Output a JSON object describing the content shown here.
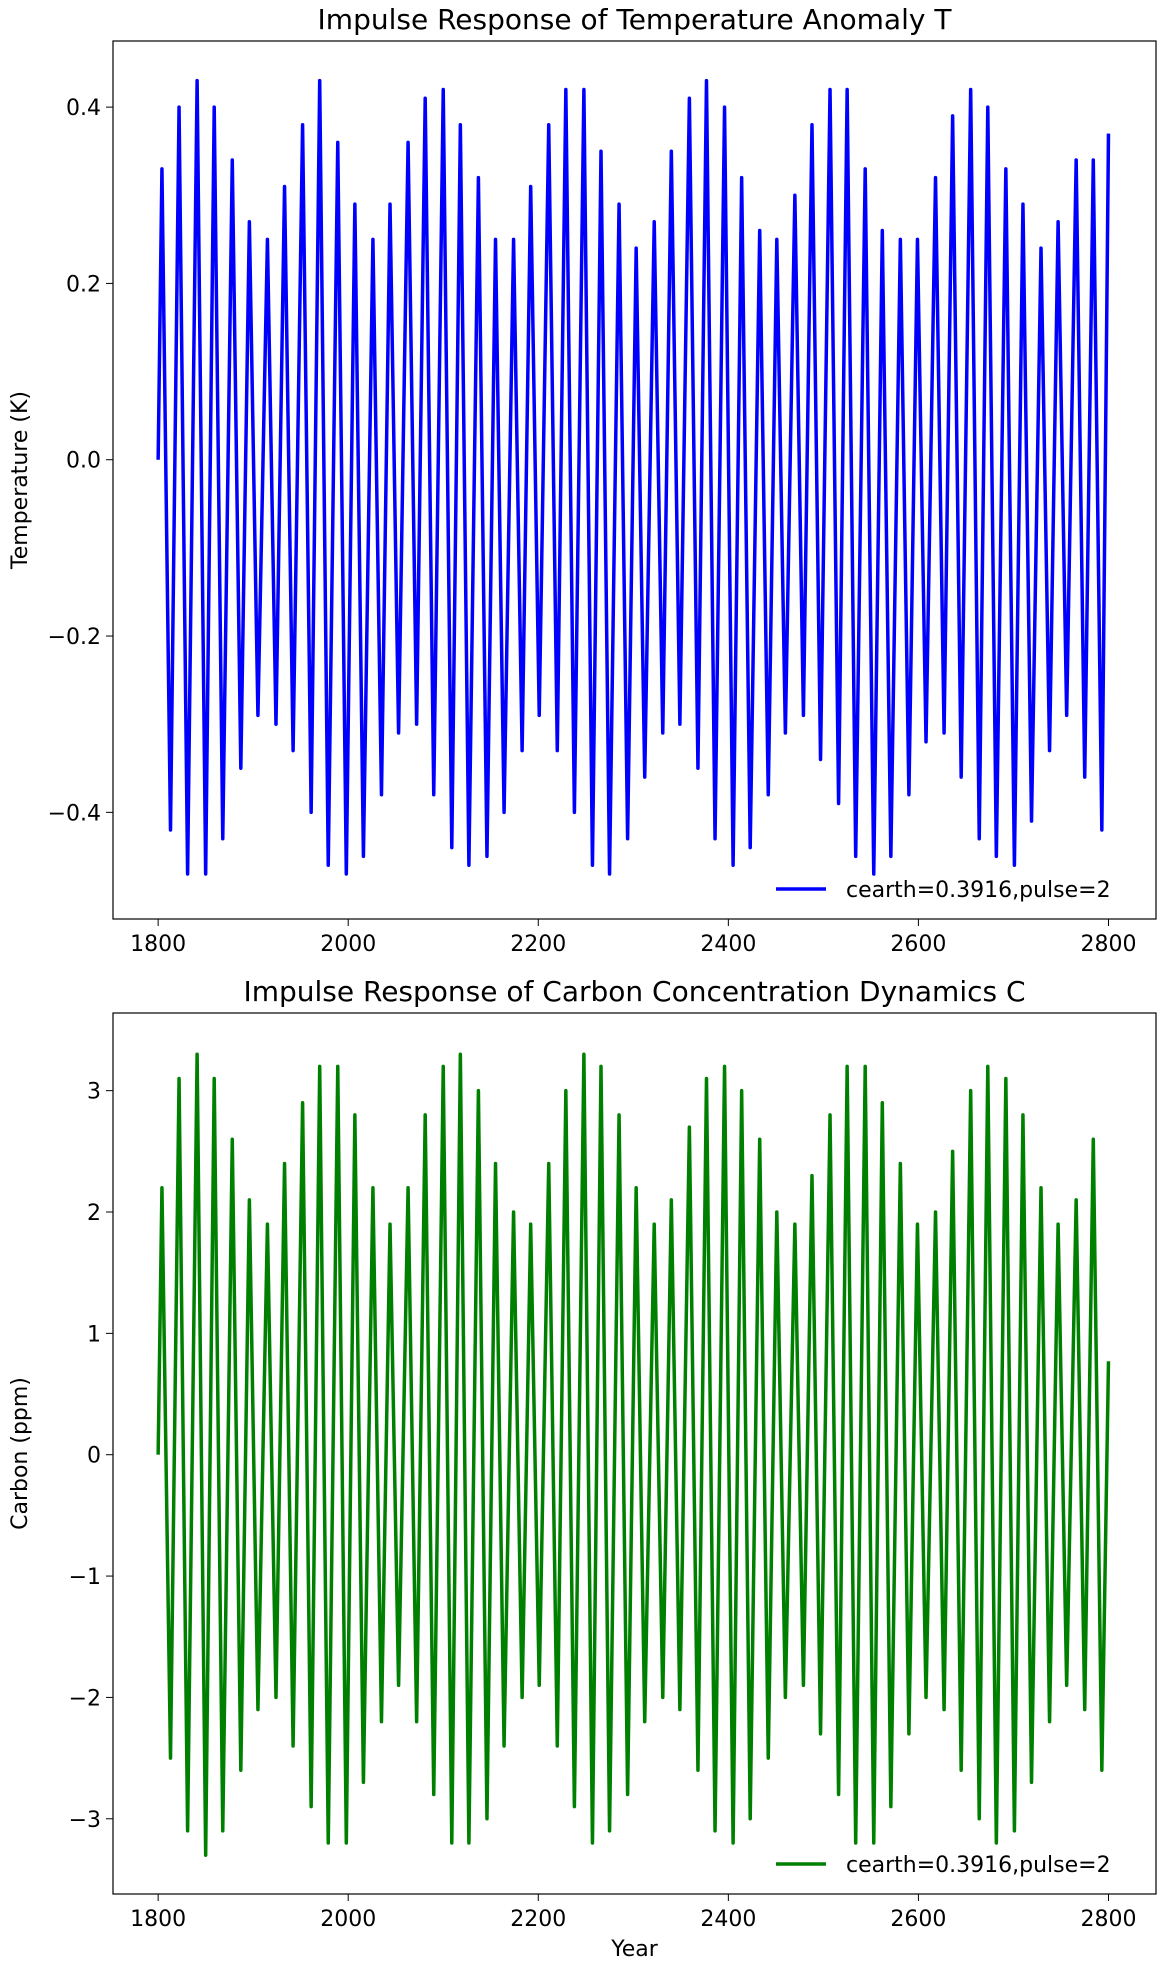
{
  "chart_data": [
    {
      "type": "line",
      "title": "Impulse Response of Temperature Anomaly T",
      "ylabel": "Temperature (K)",
      "legend": "lower right",
      "xlim": [
        1752.5,
        2850
      ],
      "xticks": [
        1800,
        2000,
        2200,
        2400,
        2600,
        2800
      ],
      "ylim": [
        -0.521,
        0.475
      ],
      "yticks": [
        {
          "value": -0.4,
          "label": "−0.4"
        },
        {
          "value": -0.2,
          "label": "−0.2"
        },
        {
          "value": 0,
          "label": "0.0"
        },
        {
          "value": 0.2,
          "label": "0.2"
        },
        {
          "value": 0.4,
          "label": "0.4"
        }
      ],
      "x": [
        1800,
        1804,
        1813,
        1822,
        1831,
        1841,
        1850,
        1859,
        1868,
        1878,
        1887,
        1896,
        1905,
        1915,
        1924,
        1933,
        1942,
        1952,
        1961,
        1970,
        1979,
        1989,
        1998,
        2007,
        2016,
        2026,
        2035,
        2044,
        2053,
        2063,
        2072,
        2081,
        2090,
        2100,
        2109,
        2118,
        2127,
        2137,
        2146,
        2155,
        2164,
        2174,
        2183,
        2192,
        2201,
        2211,
        2220,
        2229,
        2238,
        2248,
        2257,
        2266,
        2275,
        2285,
        2294,
        2303,
        2312,
        2322,
        2331,
        2340,
        2349,
        2359,
        2368,
        2377,
        2386,
        2396,
        2405,
        2414,
        2423,
        2433,
        2442,
        2451,
        2460,
        2470,
        2479,
        2488,
        2497,
        2507,
        2516,
        2525,
        2534,
        2544,
        2553,
        2562,
        2571,
        2581,
        2590,
        2599,
        2608,
        2618,
        2627,
        2636,
        2645,
        2655,
        2664,
        2673,
        2682,
        2692,
        2701,
        2710,
        2719,
        2729,
        2738,
        2747,
        2756,
        2766,
        2775,
        2784,
        2793,
        2800
      ],
      "series": [
        {
          "name": "cearth=0.3916,pulse=2",
          "color": "#0000ff",
          "values": [
            0,
            0.33,
            -0.42,
            0.4,
            -0.47,
            0.43,
            -0.47,
            0.4,
            -0.43,
            0.34,
            -0.35,
            0.27,
            -0.29,
            0.25,
            -0.3,
            0.31,
            -0.33,
            0.38,
            -0.4,
            0.43,
            -0.46,
            0.36,
            -0.47,
            0.29,
            -0.45,
            0.25,
            -0.38,
            0.29,
            -0.31,
            0.36,
            -0.3,
            0.41,
            -0.38,
            0.42,
            -0.44,
            0.38,
            -0.46,
            0.32,
            -0.45,
            0.25,
            -0.4,
            0.25,
            -0.33,
            0.31,
            -0.29,
            0.38,
            -0.33,
            0.42,
            -0.4,
            0.42,
            -0.46,
            0.35,
            -0.47,
            0.29,
            -0.43,
            0.24,
            -0.36,
            0.27,
            -0.31,
            0.35,
            -0.3,
            0.41,
            -0.35,
            0.43,
            -0.43,
            0.4,
            -0.46,
            0.32,
            -0.44,
            0.26,
            -0.38,
            0.25,
            -0.31,
            0.3,
            -0.29,
            0.38,
            -0.34,
            0.42,
            -0.39,
            0.42,
            -0.45,
            0.33,
            -0.47,
            0.26,
            -0.45,
            0.25,
            -0.38,
            0.25,
            -0.32,
            0.32,
            -0.31,
            0.39,
            -0.36,
            0.42,
            -0.43,
            0.4,
            -0.45,
            0.33,
            -0.46,
            0.29,
            -0.41,
            0.24,
            -0.33,
            0.27,
            -0.29,
            0.34,
            -0.36,
            0.34,
            -0.42,
            0.37
          ]
        }
      ]
    },
    {
      "type": "line",
      "title": "Impulse Response of Carbon Concentration Dynamics C",
      "xlabel": "Year",
      "ylabel": "Carbon (ppm)",
      "legend": "lower right",
      "xlim": [
        1752.5,
        2850
      ],
      "xticks": [
        1800,
        2000,
        2200,
        2400,
        2600,
        2800
      ],
      "ylim": [
        -3.62,
        3.64
      ],
      "yticks": [
        {
          "value": -3,
          "label": "−3"
        },
        {
          "value": -2,
          "label": "−2"
        },
        {
          "value": -1,
          "label": "−1"
        },
        0,
        1,
        2,
        3
      ],
      "x": [
        1800,
        1804,
        1813,
        1822,
        1831,
        1841,
        1850,
        1859,
        1868,
        1878,
        1887,
        1896,
        1905,
        1915,
        1924,
        1933,
        1942,
        1952,
        1961,
        1970,
        1979,
        1989,
        1998,
        2007,
        2016,
        2026,
        2035,
        2044,
        2053,
        2063,
        2072,
        2081,
        2090,
        2100,
        2109,
        2118,
        2127,
        2137,
        2146,
        2155,
        2164,
        2174,
        2183,
        2192,
        2201,
        2211,
        2220,
        2229,
        2238,
        2248,
        2257,
        2266,
        2275,
        2285,
        2294,
        2303,
        2312,
        2322,
        2331,
        2340,
        2349,
        2359,
        2368,
        2377,
        2386,
        2396,
        2405,
        2414,
        2423,
        2433,
        2442,
        2451,
        2460,
        2470,
        2479,
        2488,
        2497,
        2507,
        2516,
        2525,
        2534,
        2544,
        2553,
        2562,
        2571,
        2581,
        2590,
        2599,
        2608,
        2618,
        2627,
        2636,
        2645,
        2655,
        2664,
        2673,
        2682,
        2692,
        2701,
        2710,
        2719,
        2729,
        2738,
        2747,
        2756,
        2766,
        2775,
        2784,
        2793,
        2800
      ],
      "series": [
        {
          "name": "cearth=0.3916,pulse=2",
          "color": "#008000",
          "values": [
            0,
            2.2,
            -2.5,
            3.1,
            -3.1,
            3.3,
            -3.3,
            3.1,
            -3.1,
            2.6,
            -2.6,
            2.1,
            -2.1,
            1.9,
            -2.0,
            2.4,
            -2.4,
            2.9,
            -2.9,
            3.2,
            -3.2,
            3.2,
            -3.2,
            2.8,
            -2.7,
            2.2,
            -2.2,
            1.9,
            -1.9,
            2.2,
            -2.2,
            2.8,
            -2.8,
            3.2,
            -3.2,
            3.3,
            -3.2,
            3.0,
            -3.0,
            2.4,
            -2.4,
            2.0,
            -2.0,
            1.9,
            -1.9,
            2.4,
            -2.4,
            3.0,
            -2.9,
            3.3,
            -3.2,
            3.2,
            -3.1,
            2.8,
            -2.8,
            2.2,
            -2.2,
            1.9,
            -2.0,
            2.1,
            -2.1,
            2.7,
            -2.6,
            3.1,
            -3.1,
            3.2,
            -3.2,
            3.0,
            -3.0,
            2.6,
            -2.5,
            2.0,
            -2.0,
            1.9,
            -1.9,
            2.3,
            -2.3,
            2.8,
            -2.8,
            3.2,
            -3.2,
            3.2,
            -3.2,
            2.9,
            -2.9,
            2.4,
            -2.3,
            1.9,
            -2.0,
            2.0,
            -2.1,
            2.5,
            -2.6,
            3.0,
            -3.0,
            3.2,
            -3.2,
            3.1,
            -3.1,
            2.8,
            -2.7,
            2.2,
            -2.2,
            1.9,
            -1.9,
            2.1,
            -2.1,
            2.6,
            -2.6,
            0.77
          ]
        }
      ]
    }
  ]
}
